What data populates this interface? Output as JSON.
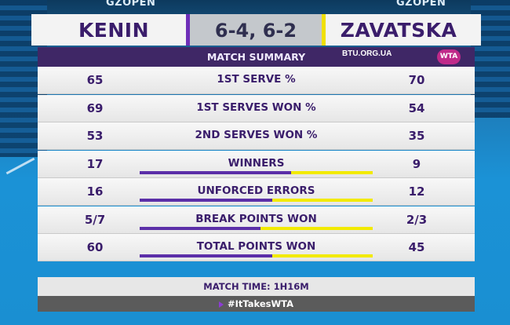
{
  "background": {
    "banner_left": "GZOPEN",
    "banner_right": "GZOPEN"
  },
  "header": {
    "player1": "KENIN",
    "player2": "ZAVATSKA",
    "score": "6-4, 6-2"
  },
  "summary": {
    "title": "MATCH SUMMARY",
    "logo": "WTA",
    "watermark": "BTU.ORG.UA",
    "stats": [
      {
        "label": "1ST SERVE %",
        "p1": "65",
        "p2": "70"
      },
      {
        "label": "1ST SERVES WON %",
        "p1": "69",
        "p2": "54"
      },
      {
        "label": "2ND SERVES WON %",
        "p1": "53",
        "p2": "35"
      },
      {
        "label": "WINNERS",
        "p1": "17",
        "p2": "9",
        "p1_share": 0.65
      },
      {
        "label": "UNFORCED ERRORS",
        "p1": "16",
        "p2": "12",
        "p1_share": 0.57
      },
      {
        "label": "BREAK POINTS WON",
        "p1": "5/7",
        "p2": "2/3",
        "p1_share": 0.52
      },
      {
        "label": "TOTAL POINTS WON",
        "p1": "60",
        "p2": "45",
        "p1_share": 0.57
      }
    ],
    "match_time": "MATCH TIME: 1H16M",
    "hashtag": "#ItTakesWTA"
  },
  "colors": {
    "purple": "#5b2fa8",
    "yellow": "#f2ea00",
    "title_bg": "#3f2766",
    "text": "#3a1d6b"
  }
}
